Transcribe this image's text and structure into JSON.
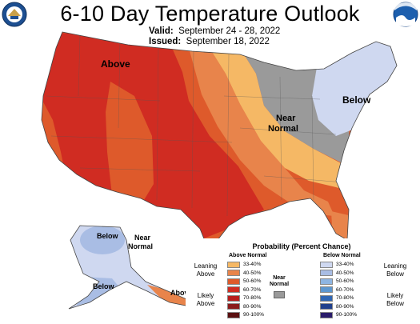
{
  "title": "6-10 Day Temperature Outlook",
  "valid_label": "Valid:",
  "valid_dates": "September 24 - 28, 2022",
  "issued_label": "Issued:",
  "issued_date": "September 18, 2022",
  "logos": {
    "left": "doc-seal-icon",
    "right": "noaa-logo-icon"
  },
  "colors": {
    "above_33_40": "#f5b865",
    "above_40_50": "#e8844b",
    "above_50_60": "#de5a2b",
    "above_60_70": "#d02c22",
    "above_70_80": "#b81d1d",
    "above_80_90": "#8b1a1a",
    "above_90_100": "#5a0f10",
    "near_normal": "#9a9a9a",
    "below_33_40": "#cfd8f0",
    "below_40_50": "#a9bde4",
    "below_50_60": "#8eb5e2",
    "below_60_70": "#5d97d0",
    "below_70_80": "#2f66b4",
    "below_80_90": "#1f3f8c",
    "below_90_100": "#2a1c6a"
  },
  "map_labels": {
    "above_west": "Above",
    "near_normal_east_1": "Near",
    "near_normal_east_2": "Normal",
    "below_northeast": "Below",
    "alaska_below_north": "Below",
    "alaska_near_1": "Near",
    "alaska_near_2": "Normal",
    "alaska_below_south": "Below",
    "alaska_above_southeast": "Above"
  },
  "legend": {
    "title": "Probability (Percent Chance)",
    "above_header": "Above Normal",
    "below_header": "Below Normal",
    "near_label_1": "Near",
    "near_label_2": "Normal",
    "leaning_above_1": "Leaning",
    "leaning_above_2": "Above",
    "likely_above_1": "Likely",
    "likely_above_2": "Above",
    "leaning_below_1": "Leaning",
    "leaning_below_2": "Below",
    "likely_below_1": "Likely",
    "likely_below_2": "Below",
    "ranges": [
      "33-40%",
      "40-50%",
      "50-60%",
      "60-70%",
      "70-80%",
      "80-90%",
      "90-100%"
    ]
  }
}
